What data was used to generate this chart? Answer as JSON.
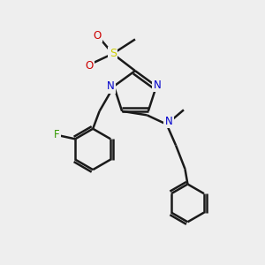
{
  "background_color": "#eeeeee",
  "bond_width": 1.8,
  "figsize": [
    3.0,
    3.0
  ],
  "dpi": 100,
  "atom_colors": {
    "N": "#0000cc",
    "S": "#cccc00",
    "O": "#cc0000",
    "F": "#339900",
    "C": "#1a1a1a"
  }
}
